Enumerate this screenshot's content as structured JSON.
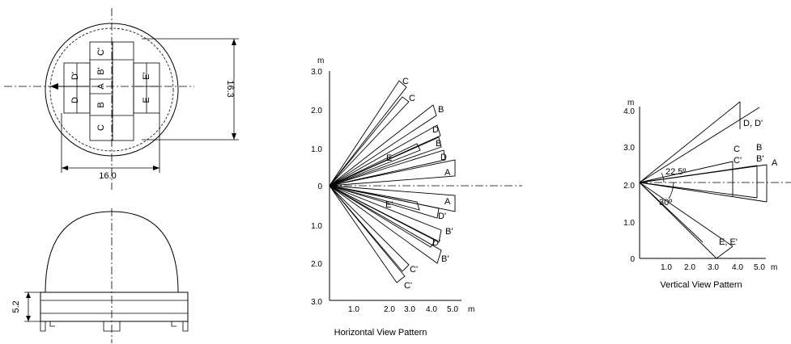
{
  "top_view": {
    "dim_height": "16.3",
    "dim_width": "16.0",
    "segment_labels": {
      "left_upper": "D'",
      "left_lower": "D",
      "center_top": "C'",
      "center_upper": "B'",
      "center_mid": "A",
      "center_lower": "B",
      "center_bottom": "C",
      "right_upper": "E'",
      "right_lower": "E"
    }
  },
  "side_view": {
    "dim_base_height": "5.2"
  },
  "horizontal_pattern": {
    "caption": "Horizontal View Pattern",
    "y_unit": "m",
    "x_unit": "m",
    "y_ticks": [
      "3.0",
      "2.0",
      "1.0",
      "0",
      "1.0",
      "2.0",
      "3.0"
    ],
    "x_ticks": [
      "1.0",
      "2.0",
      "3.0",
      "4.0",
      "5.0"
    ],
    "zone_labels": [
      "C",
      "C",
      "B",
      "D",
      "B",
      "E",
      "D",
      "A",
      "A",
      "E'",
      "D'",
      "B'",
      "D'",
      "B'",
      "C'",
      "C'"
    ]
  },
  "vertical_pattern": {
    "caption": "Vertical View Pattern",
    "y_unit": "m",
    "x_unit": "m",
    "y_ticks": [
      "4.0",
      "3.0",
      "2.0",
      "1.0",
      "0"
    ],
    "x_ticks": [
      "1.0",
      "2.0",
      "3.0",
      "4.0",
      "5.0"
    ],
    "angle_upper": "22.5º",
    "angle_lower": "30º",
    "zone_labels": {
      "dd": "D, D'",
      "c": "C",
      "c_prime": "C'",
      "b": "B",
      "b_prime": "B'",
      "a": "A",
      "ee": "E, E'"
    }
  }
}
